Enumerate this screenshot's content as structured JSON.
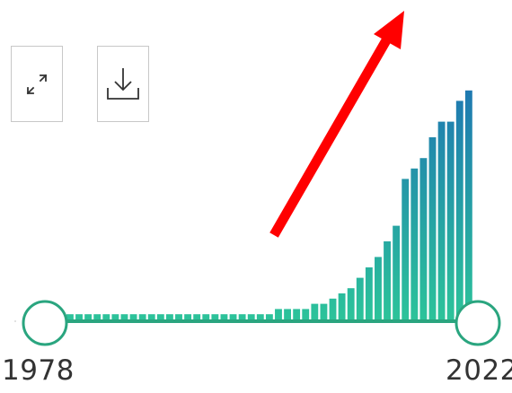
{
  "toolbar": {
    "expand_icon": "expand-arrows-icon",
    "download_icon": "download-icon"
  },
  "colors": {
    "bar_bottom": "#2cc39a",
    "bar_top": "#1d6fb4",
    "track": "#2aa57f",
    "handle_stroke": "#2aa57f",
    "arrow": "#ff0000",
    "button_border": "#c8c8c8"
  },
  "range": {
    "start_label": "1978",
    "end_label": "2022"
  },
  "annotation": {
    "arrow_direction": "up-right"
  },
  "chart_data": {
    "type": "bar",
    "x": [
      1978,
      1979,
      1980,
      1981,
      1982,
      1983,
      1984,
      1985,
      1986,
      1987,
      1988,
      1989,
      1990,
      1991,
      1992,
      1993,
      1994,
      1995,
      1996,
      1997,
      1998,
      1999,
      2000,
      2001,
      2002,
      2003,
      2004,
      2005,
      2006,
      2007,
      2008,
      2009,
      2010,
      2011,
      2012,
      2013,
      2014,
      2015,
      2016,
      2017,
      2018,
      2019,
      2020,
      2021,
      2022
    ],
    "values": [
      1,
      1,
      1,
      1,
      1,
      1,
      1,
      1,
      1,
      1,
      1,
      1,
      1,
      1,
      1,
      1,
      1,
      1,
      1,
      1,
      1,
      1,
      1,
      2,
      2,
      2,
      2,
      3,
      3,
      4,
      5,
      6,
      8,
      10,
      12,
      15,
      18,
      27,
      29,
      31,
      35,
      38,
      38,
      42,
      44
    ],
    "ylim": [
      0,
      50
    ],
    "selected_range": [
      1978,
      2022
    ]
  }
}
